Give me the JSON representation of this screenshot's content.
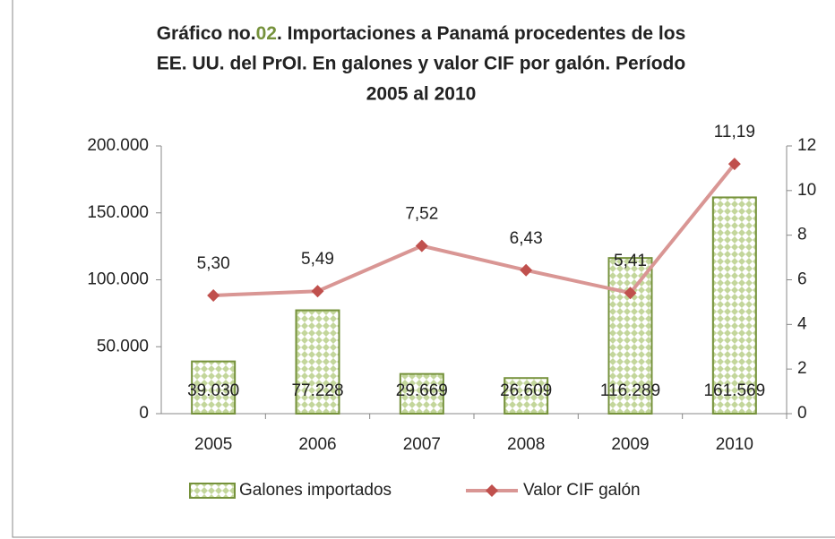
{
  "chart_data": {
    "type": "bar_line",
    "title": [
      "Gráfico no.",
      "02",
      ". Importaciones a Panamá procedentes de los",
      "EE. UU. del PrOI. En galones y valor CIF por galón. Período",
      "2005 al 2010"
    ],
    "title_highlight_color": "#76923c",
    "categories": [
      "2005",
      "2006",
      "2007",
      "2008",
      "2009",
      "2010"
    ],
    "series": [
      {
        "name": "Galones importados",
        "type": "bar",
        "color": "#76923c",
        "values": [
          39030,
          77228,
          29669,
          26609,
          116289,
          161569
        ],
        "value_labels": [
          "39.030",
          "77.228",
          "29.669",
          "26.609",
          "116.289",
          "161.569"
        ]
      },
      {
        "name": "Valor CIF galón",
        "type": "line",
        "axis": "y2",
        "color": "#d99694",
        "marker_color": "#c0504d",
        "values": [
          5.3,
          5.49,
          7.52,
          6.43,
          5.41,
          11.19
        ],
        "value_labels": [
          "5,30",
          "5,49",
          "7,52",
          "6,43",
          "5,41",
          "11,19"
        ]
      }
    ],
    "ylim": [
      0,
      200000
    ],
    "yticks": [
      0,
      {
        "value": 50000,
        "label": "50.000"
      },
      {
        "value": 100000,
        "label": "100.000"
      },
      {
        "value": 150000,
        "label": "150.000"
      },
      {
        "value": 200000,
        "label": "200.000"
      }
    ],
    "y2lim": [
      0,
      12
    ],
    "y2ticks": [
      0,
      2,
      4,
      6,
      8,
      10,
      12
    ],
    "grid": false,
    "legend": "bottom"
  }
}
